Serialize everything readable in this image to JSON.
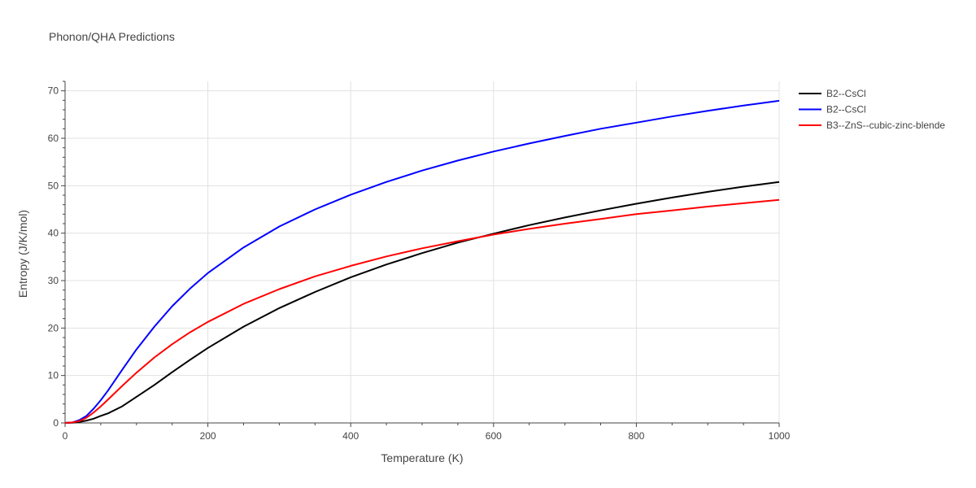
{
  "chart_data": {
    "type": "line",
    "title": "Phonon/QHA Predictions",
    "xlabel": "Temperature (K)",
    "ylabel": "Entropy (J/K/mol)",
    "xlim": [
      0,
      1000
    ],
    "ylim": [
      0,
      72
    ],
    "xticks": [
      0,
      200,
      400,
      600,
      800,
      1000
    ],
    "yticks": [
      0,
      10,
      20,
      30,
      40,
      50,
      60,
      70
    ],
    "grid": true,
    "legend_position": "top-right",
    "series": [
      {
        "name": "B2--CsCl",
        "color": "#000000",
        "x": [
          0,
          10,
          20,
          30,
          40,
          50,
          60,
          80,
          100,
          125,
          150,
          175,
          200,
          250,
          300,
          350,
          400,
          450,
          500,
          550,
          600,
          650,
          700,
          750,
          800,
          850,
          900,
          950,
          1000
        ],
        "y": [
          0,
          0.05,
          0.2,
          0.5,
          0.9,
          1.5,
          2.0,
          3.5,
          5.5,
          8.0,
          10.7,
          13.3,
          15.8,
          20.3,
          24.2,
          27.6,
          30.7,
          33.4,
          35.8,
          38.0,
          39.9,
          41.7,
          43.3,
          44.8,
          46.2,
          47.5,
          48.7,
          49.8,
          50.8
        ]
      },
      {
        "name": "B2--CsCl",
        "color": "#0000ff",
        "x": [
          0,
          10,
          20,
          30,
          40,
          50,
          60,
          80,
          100,
          125,
          150,
          175,
          200,
          250,
          300,
          350,
          400,
          450,
          500,
          550,
          600,
          650,
          700,
          750,
          800,
          850,
          900,
          950,
          1000
        ],
        "y": [
          0,
          0.1,
          0.6,
          1.5,
          3.0,
          4.8,
          6.8,
          11.2,
          15.5,
          20.3,
          24.6,
          28.3,
          31.6,
          37.0,
          41.4,
          45.0,
          48.1,
          50.8,
          53.2,
          55.3,
          57.2,
          58.9,
          60.5,
          62.0,
          63.3,
          64.6,
          65.8,
          66.9,
          67.9
        ]
      },
      {
        "name": "B3--ZnS--cubic-zinc-blende",
        "color": "#ff0000",
        "x": [
          0,
          10,
          20,
          30,
          40,
          50,
          60,
          80,
          100,
          125,
          150,
          175,
          200,
          250,
          300,
          350,
          400,
          450,
          500,
          550,
          600,
          650,
          700,
          750,
          800,
          850,
          900,
          950,
          1000
        ],
        "y": [
          0,
          0.1,
          0.4,
          1.1,
          2.2,
          3.5,
          4.9,
          7.8,
          10.6,
          13.8,
          16.6,
          19.1,
          21.3,
          25.1,
          28.2,
          30.9,
          33.1,
          35.1,
          36.8,
          38.3,
          39.7,
          40.9,
          42.0,
          43.0,
          44.0,
          44.8,
          45.6,
          46.3,
          47.0
        ]
      }
    ]
  }
}
